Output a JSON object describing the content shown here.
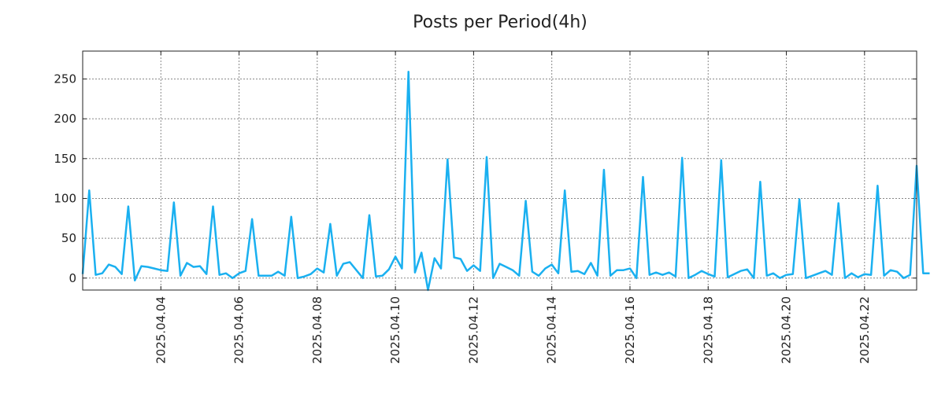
{
  "chart_data": {
    "type": "line",
    "title": "Posts per Period(4h)",
    "xlabel": "",
    "ylabel": "",
    "grid": true,
    "line_color": "#1ab0f0",
    "x_start": "2025.04.02 00:00",
    "x_step_hours": 4,
    "xlim_periods": [
      0,
      128
    ],
    "ylim": [
      -15,
      285
    ],
    "y_ticks": [
      0,
      50,
      100,
      150,
      200,
      250
    ],
    "x_tick_labels": [
      "2025.04.04",
      "2025.04.06",
      "2025.04.08",
      "2025.04.10",
      "2025.04.12",
      "2025.04.14",
      "2025.04.16",
      "2025.04.18",
      "2025.04.20",
      "2025.04.22"
    ],
    "x_tick_periods": [
      12,
      24,
      36,
      48,
      60,
      72,
      84,
      96,
      108,
      120
    ],
    "series": [
      {
        "name": "posts",
        "values": [
          5,
          110,
          4,
          6,
          17,
          14,
          5,
          90,
          -3,
          15,
          14,
          12,
          10,
          9,
          95,
          3,
          19,
          14,
          15,
          5,
          90,
          4,
          6,
          0,
          6,
          9,
          74,
          3,
          3,
          3,
          8,
          3,
          77,
          0,
          2,
          5,
          12,
          7,
          68,
          3,
          18,
          20,
          10,
          0,
          79,
          2,
          3,
          11,
          27,
          12,
          259,
          7,
          32,
          -15,
          25,
          12,
          149,
          26,
          24,
          9,
          16,
          9,
          152,
          0,
          18,
          14,
          10,
          3,
          97,
          8,
          3,
          12,
          17,
          6,
          110,
          8,
          9,
          5,
          19,
          3,
          136,
          3,
          10,
          10,
          12,
          0,
          127,
          4,
          7,
          4,
          7,
          2,
          151,
          0,
          4,
          9,
          5,
          2,
          148,
          1,
          5,
          9,
          11,
          0,
          121,
          3,
          6,
          0,
          4,
          5,
          99,
          0,
          3,
          6,
          9,
          4,
          94,
          0,
          6,
          1,
          5,
          4,
          116,
          3,
          10,
          8,
          0,
          4,
          141,
          6,
          6
        ]
      }
    ]
  }
}
